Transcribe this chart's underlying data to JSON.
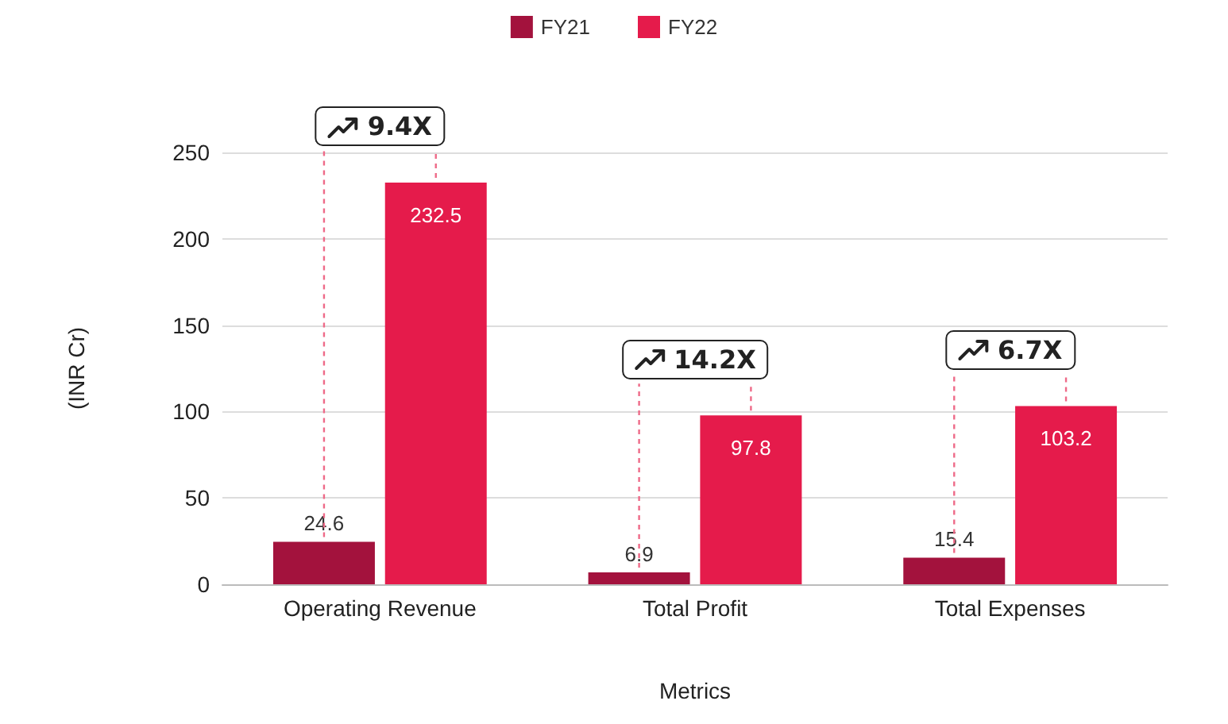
{
  "chart_data": {
    "type": "bar",
    "xlabel": "Metrics",
    "ylabel": "(INR Cr)",
    "categories": [
      "Operating Revenue",
      "Total Profit",
      "Total Expenses"
    ],
    "series": [
      {
        "name": "FY21",
        "color": "#a3123d",
        "values": [
          24.6,
          6.9,
          15.4
        ]
      },
      {
        "name": "FY22",
        "color": "#e51b4b",
        "values": [
          232.5,
          97.8,
          103.2
        ]
      }
    ],
    "ylim": [
      0,
      250
    ],
    "yticks": [
      0,
      50,
      100,
      150,
      200,
      250
    ],
    "grid": "y",
    "legend": "top",
    "data_labels": true,
    "annotations": [
      "9.4X",
      "14.2X",
      "6.7X"
    ]
  }
}
